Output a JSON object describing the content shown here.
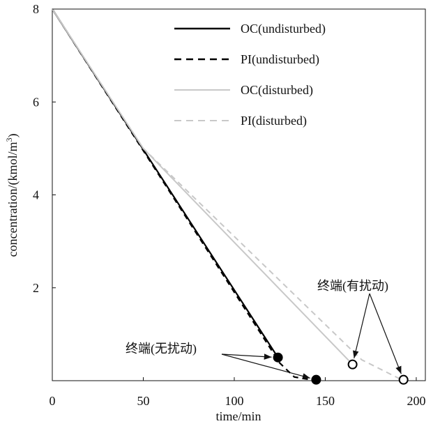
{
  "chart_data": {
    "type": "line",
    "xlabel": "time/min",
    "ylabel": "concentration/(kmol/m",
    "ylabel_sup": "3",
    "ylabel_close": ")",
    "xlim": [
      0,
      205
    ],
    "ylim": [
      0,
      8
    ],
    "x_ticks": [
      0,
      50,
      100,
      150,
      200
    ],
    "y_ticks": [
      2,
      4,
      6,
      8
    ],
    "legend_position": "top-right",
    "series": [
      {
        "name": "OC(undisturbed)",
        "color": "#000000",
        "dash": "solid",
        "x": [
          0,
          124
        ],
        "y": [
          8.0,
          0.5
        ]
      },
      {
        "name": "PI(undisturbed)",
        "color": "#000000",
        "dash": "dashed",
        "x": [
          0,
          125,
          133,
          145
        ],
        "y": [
          8.0,
          0.38,
          0.08,
          0.0
        ]
      },
      {
        "name": "OC(disturbed)",
        "color": "#c8c8c8",
        "dash": "solid",
        "x": [
          0,
          50,
          165
        ],
        "y": [
          8.0,
          5.0,
          0.35
        ]
      },
      {
        "name": "PI(disturbed)",
        "color": "#c8c8c8",
        "dash": "dashed",
        "x": [
          0,
          50,
          170,
          193
        ],
        "y": [
          8.0,
          5.0,
          0.45,
          0.0
        ]
      }
    ],
    "markers": [
      {
        "x": 124,
        "y": 0.5,
        "filled": true
      },
      {
        "x": 145,
        "y": 0.02,
        "filled": true
      },
      {
        "x": 165,
        "y": 0.35,
        "filled": false
      },
      {
        "x": 193,
        "y": 0.02,
        "filled": false
      }
    ],
    "annotations": [
      {
        "text": "终端(无扰动)",
        "targets": [
          [
            124,
            0.5
          ],
          [
            145,
            0.02
          ]
        ]
      },
      {
        "text": "终端(有扰动)",
        "targets": [
          [
            165,
            0.35
          ],
          [
            193,
            0.02
          ]
        ]
      }
    ]
  }
}
